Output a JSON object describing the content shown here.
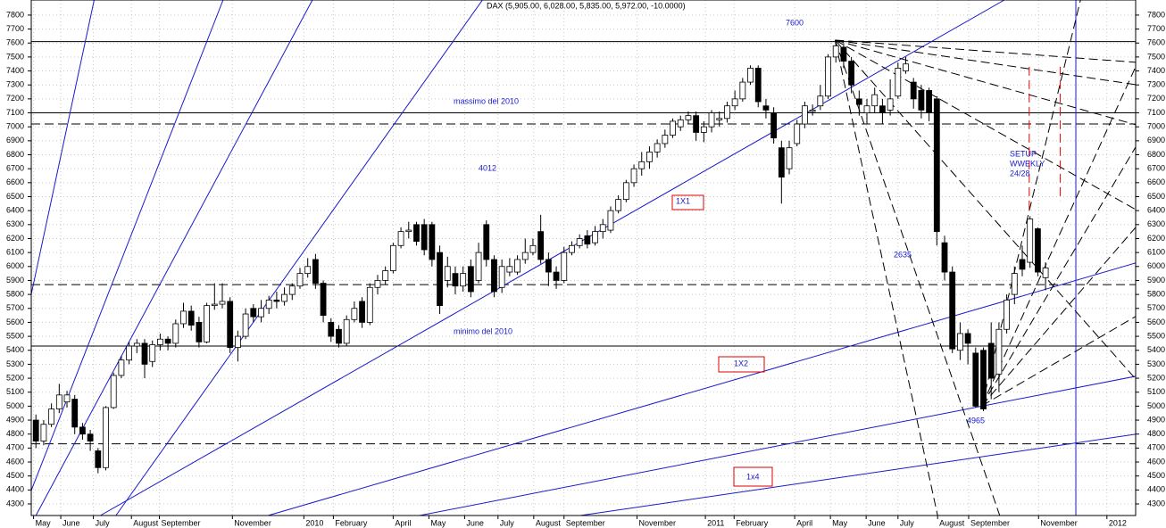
{
  "chart_data": {
    "type": "candlestick",
    "title": "DAX (5,905.00, 6,028.00, 5,835.00, 5,972.00, -10.0000)",
    "x": [
      0,
      1,
      2,
      3,
      4,
      5,
      6,
      7,
      8,
      9,
      10,
      11,
      12,
      13,
      14,
      15,
      16,
      17,
      18,
      19,
      20,
      21,
      22,
      23,
      24,
      25,
      26,
      27,
      28,
      29,
      30,
      31,
      32,
      33,
      34,
      35,
      36,
      37,
      38,
      39,
      40,
      41,
      42,
      43,
      44,
      45,
      46,
      47,
      48,
      49,
      50,
      51,
      52,
      53,
      54,
      55,
      56,
      57,
      58,
      59,
      60,
      61,
      62,
      63,
      64,
      65,
      66,
      67,
      68,
      69,
      70,
      71,
      72,
      73,
      74,
      75,
      76,
      77,
      78,
      79,
      80,
      81,
      82,
      83,
      84,
      85,
      86,
      87,
      88,
      89,
      90,
      91,
      92,
      93,
      94,
      95,
      96,
      97,
      98,
      99,
      100,
      101,
      102,
      103,
      104,
      105,
      106,
      107,
      108,
      109,
      110,
      111,
      112,
      113,
      114,
      115,
      116,
      117,
      118,
      119,
      120,
      121,
      122,
      123,
      124,
      125,
      126,
      127,
      128,
      129,
      130
    ],
    "open": [
      4900,
      4750,
      4870,
      4980,
      5030,
      5050,
      4850,
      4800,
      4680,
      4560,
      4990,
      5220,
      5330,
      5430,
      5450,
      5320,
      5440,
      5480,
      5450,
      5590,
      5680,
      5600,
      5460,
      5720,
      5730,
      5750,
      5420,
      5500,
      5700,
      5640,
      5700,
      5760,
      5750,
      5800,
      5860,
      5950,
      6050,
      5880,
      5600,
      5550,
      5450,
      5620,
      5750,
      5600,
      5850,
      5900,
      5970,
      6150,
      6250,
      6300,
      6300,
      6300,
      6100,
      5900,
      5950,
      5860,
      6000,
      5900,
      6300,
      6050,
      5850,
      5960,
      5960,
      6050,
      6100,
      6250,
      6050,
      5960,
      5900,
      6100,
      6150,
      6220,
      6170,
      6250,
      6260,
      6400,
      6480,
      6600,
      6700,
      6750,
      6820,
      6880,
      6940,
      7000,
      7050,
      7080,
      6960,
      7000,
      7050,
      7060,
      7150,
      7200,
      7320,
      7420,
      7150,
      7100,
      6850,
      6700,
      6880,
      7020,
      7110,
      7150,
      7220,
      7500,
      7570,
      7470,
      7200,
      7100,
      7150,
      7150,
      7120,
      7220,
      7400,
      7320,
      7260,
      7260,
      7200,
      6170,
      5960,
      5400,
      5520,
      5380,
      5400,
      5450,
      5230,
      5550,
      5800,
      6050,
      6030,
      6270,
      5920
    ],
    "high": [
      4940,
      4900,
      5020,
      5160,
      5110,
      5080,
      4880,
      4830,
      4700,
      5000,
      5240,
      5360,
      5460,
      5480,
      5480,
      5470,
      5520,
      5500,
      5620,
      5740,
      5720,
      5640,
      5740,
      5880,
      5880,
      5780,
      5540,
      5700,
      5730,
      5760,
      5790,
      5820,
      5850,
      5880,
      5990,
      6060,
      6090,
      5900,
      5630,
      5580,
      5650,
      5750,
      5780,
      5880,
      5940,
      6000,
      6170,
      6280,
      6320,
      6320,
      6340,
      6320,
      6150,
      6070,
      6000,
      6000,
      6050,
      6170,
      6330,
      6080,
      6050,
      6060,
      6080,
      6200,
      6200,
      6370,
      6100,
      6000,
      6140,
      6180,
      6230,
      6260,
      6290,
      6340,
      6430,
      6510,
      6620,
      6730,
      6820,
      6860,
      6910,
      6980,
      7060,
      7080,
      7110,
      7110,
      7040,
      7120,
      7110,
      7180,
      7260,
      7350,
      7440,
      7440,
      7200,
      7140,
      6900,
      6900,
      7050,
      7180,
      7160,
      7300,
      7520,
      7600,
      7600,
      7500,
      7260,
      7200,
      7280,
      7200,
      7340,
      7460,
      7500,
      7350,
      7300,
      7280,
      7220,
      6220,
      6000,
      5600,
      5550,
      5420,
      5420,
      5600,
      5600,
      5800,
      6000,
      6150,
      6360,
      6280,
      6030
    ],
    "low": [
      4700,
      4720,
      4850,
      4950,
      4990,
      4800,
      4760,
      4680,
      4520,
      4540,
      4980,
      5200,
      5300,
      5380,
      5200,
      5280,
      5400,
      5400,
      5420,
      5560,
      5540,
      5420,
      5450,
      5690,
      5700,
      5380,
      5320,
      5480,
      5600,
      5600,
      5660,
      5700,
      5720,
      5760,
      5840,
      5920,
      5840,
      5600,
      5460,
      5420,
      5430,
      5600,
      5560,
      5580,
      5800,
      5870,
      5950,
      6130,
      6200,
      6150,
      6080,
      6000,
      5660,
      5850,
      5800,
      5820,
      5780,
      5880,
      6000,
      5780,
      5810,
      5930,
      5940,
      6020,
      6080,
      6020,
      5860,
      5840,
      5880,
      6080,
      6130,
      6130,
      6150,
      6200,
      6240,
      6380,
      6460,
      6570,
      6650,
      6700,
      6780,
      6850,
      6920,
      6970,
      7020,
      6900,
      6890,
      6960,
      7000,
      7030,
      7120,
      7180,
      7300,
      7140,
      7060,
      6880,
      6450,
      6660,
      6860,
      6990,
      7080,
      7120,
      7200,
      7460,
      7420,
      7240,
      7080,
      7020,
      7100,
      7020,
      7080,
      7200,
      7380,
      7130,
      7060,
      7040,
      6150,
      5900,
      5380,
      5330,
      5300,
      4990,
      4965,
      5050,
      5100,
      5520,
      5730,
      5930,
      5990,
      5930,
      5830
    ],
    "close": [
      4750,
      4870,
      4980,
      5080,
      5080,
      4850,
      4800,
      4750,
      4560,
      4990,
      5220,
      5330,
      5430,
      5450,
      5300,
      5440,
      5480,
      5450,
      5590,
      5680,
      5580,
      5460,
      5720,
      5730,
      5750,
      5420,
      5500,
      5660,
      5640,
      5700,
      5760,
      5750,
      5800,
      5860,
      5950,
      6000,
      5880,
      5650,
      5500,
      5450,
      5620,
      5700,
      5600,
      5850,
      5900,
      5970,
      6150,
      6250,
      6260,
      6180,
      6120,
      6050,
      5720,
      6000,
      5860,
      5950,
      5820,
      6100,
      6050,
      5820,
      6000,
      6000,
      6050,
      6100,
      6150,
      6050,
      5960,
      5900,
      6100,
      6150,
      6200,
      6160,
      6250,
      6300,
      6400,
      6480,
      6600,
      6700,
      6750,
      6820,
      6880,
      6940,
      7040,
      7050,
      7080,
      6960,
      7000,
      7100,
      7060,
      7150,
      7200,
      7320,
      7420,
      7180,
      7120,
      6920,
      6640,
      6850,
      7020,
      7150,
      7120,
      7220,
      7500,
      7580,
      7470,
      7300,
      7160,
      7150,
      7230,
      7100,
      7200,
      7420,
      7450,
      7200,
      7120,
      7100,
      6250,
      5960,
      5410,
      5520,
      5450,
      5000,
      4980,
      5200,
      5550,
      5760,
      5950,
      5980,
      6340,
      5960,
      5990
    ],
    "xlim": [
      -0.6,
      141.6
    ],
    "ylim": [
      4217,
      7908
    ],
    "yticks": [
      4300,
      4400,
      4500,
      4600,
      4700,
      4800,
      4900,
      5000,
      5100,
      5200,
      5300,
      5400,
      5500,
      5600,
      5700,
      5800,
      5900,
      6000,
      6100,
      6200,
      6300,
      6400,
      6500,
      6600,
      6700,
      6800,
      6900,
      7000,
      7100,
      7200,
      7300,
      7400,
      7500,
      7600,
      7700,
      7800
    ],
    "xticks": [
      {
        "value": -0.3,
        "label": "May"
      },
      {
        "value": 3.2,
        "label": "June"
      },
      {
        "value": 7.4,
        "label": "July"
      },
      {
        "value": 12.3,
        "label": "August"
      },
      {
        "value": 15.9,
        "label": "September"
      },
      {
        "value": 25.3,
        "label": "November"
      },
      {
        "value": 34.5,
        "label": "2010"
      },
      {
        "value": 38.3,
        "label": "February"
      },
      {
        "value": 46,
        "label": "April"
      },
      {
        "value": 50.6,
        "label": "May"
      },
      {
        "value": 55.2,
        "label": "June"
      },
      {
        "value": 59.5,
        "label": "July"
      },
      {
        "value": 64.1,
        "label": "August"
      },
      {
        "value": 68,
        "label": "September"
      },
      {
        "value": 77.4,
        "label": "November"
      },
      {
        "value": 86.2,
        "label": "2011"
      },
      {
        "value": 89.9,
        "label": "February"
      },
      {
        "value": 97.7,
        "label": "April"
      },
      {
        "value": 102.3,
        "label": "May"
      },
      {
        "value": 106.9,
        "label": "June"
      },
      {
        "value": 111,
        "label": "July"
      },
      {
        "value": 116.1,
        "label": "August"
      },
      {
        "value": 120.1,
        "label": "September"
      },
      {
        "value": 129.1,
        "label": "November"
      },
      {
        "value": 137.9,
        "label": "2012"
      }
    ],
    "grid": true,
    "up_color": "#ffffff",
    "down_color": "#000000",
    "levels": [
      {
        "value": 7610,
        "dashed": false
      },
      {
        "value": 7100,
        "dashed": false
      },
      {
        "value": 7020,
        "dashed": true
      },
      {
        "value": 5870,
        "dashed": true
      },
      {
        "value": 5430,
        "dashed": false
      },
      {
        "value": 4730,
        "dashed": true
      }
    ],
    "lines": [
      {
        "x": [
          -0.6,
          7.5
        ],
        "y": [
          5801,
          7908
        ],
        "color": "#1a1acc",
        "dashed": false
      },
      {
        "x": [
          -0.6,
          24.1
        ],
        "y": [
          4396,
          7908
        ],
        "color": "#1a1acc",
        "dashed": false
      },
      {
        "x": [
          0,
          35.6
        ],
        "y": [
          4217,
          7908
        ],
        "color": "#1a1acc",
        "dashed": false
      },
      {
        "x": [
          10.3,
          57.5
        ],
        "y": [
          4217,
          7908
        ],
        "color": "#1a1acc",
        "dashed": false
      },
      {
        "x": [
          8.3,
          124.7
        ],
        "y": [
          4217,
          7908
        ],
        "color": "#1a1acc",
        "dashed": false
      },
      {
        "x": [
          29.9,
          141.6
        ],
        "y": [
          4217,
          6025
        ],
        "color": "#1a1acc",
        "dashed": false
      },
      {
        "x": [
          49.4,
          141.6
        ],
        "y": [
          4217,
          5214
        ],
        "color": "#1a1acc",
        "dashed": false
      },
      {
        "x": [
          70.1,
          141.6
        ],
        "y": [
          4217,
          4799
        ],
        "color": "#1a1acc",
        "dashed": false
      },
      {
        "x": [
          133.9,
          133.9
        ],
        "y": [
          4217,
          7908
        ],
        "color": "#1a1acc",
        "dashed": false
      },
      {
        "x": [
          102.9,
          141.6
        ],
        "y": [
          7621,
          7462
        ],
        "color": "#000000",
        "dashed": true
      },
      {
        "x": [
          102.9,
          141.6
        ],
        "y": [
          7621,
          7302
        ],
        "color": "#000000",
        "dashed": true
      },
      {
        "x": [
          102.9,
          141.6
        ],
        "y": [
          7621,
          7015
        ],
        "color": "#000000",
        "dashed": true
      },
      {
        "x": [
          102.9,
          141.6
        ],
        "y": [
          7621,
          6408
        ],
        "color": "#000000",
        "dashed": true
      },
      {
        "x": [
          102.9,
          141.6
        ],
        "y": [
          7621,
          5195
        ],
        "color": "#000000",
        "dashed": true
      },
      {
        "x": [
          102.9,
          116.1
        ],
        "y": [
          7621,
          4217
        ],
        "color": "#000000",
        "dashed": true
      },
      {
        "x": [
          102.9,
          124.1
        ],
        "y": [
          7621,
          4217
        ],
        "color": "#000000",
        "dashed": true
      },
      {
        "x": [
          121.8,
          134.5
        ],
        "y": [
          5003,
          7908
        ],
        "color": "#000000",
        "dashed": true
      },
      {
        "x": [
          121.8,
          141.6
        ],
        "y": [
          5003,
          7430
        ],
        "color": "#000000",
        "dashed": true
      },
      {
        "x": [
          121.8,
          141.6
        ],
        "y": [
          5003,
          6855
        ],
        "color": "#000000",
        "dashed": true
      },
      {
        "x": [
          121.8,
          141.6
        ],
        "y": [
          5003,
          6280
        ],
        "color": "#000000",
        "dashed": true
      },
      {
        "x": [
          121.8,
          141.6
        ],
        "y": [
          5003,
          5642
        ],
        "color": "#000000",
        "dashed": true
      },
      {
        "x": [
          127.9,
          127.9
        ],
        "y": [
          7430,
          6376
        ],
        "color": "#dd0000",
        "dashed": true
      },
      {
        "x": [
          131.9,
          131.9
        ],
        "y": [
          7430,
          6470
        ],
        "color": "#dd0000",
        "dashed": true
      }
    ],
    "annotations": [
      {
        "text": [
          "7600"
        ],
        "boxed": false
      },
      {
        "text": [
          "massimo del 2010"
        ],
        "boxed": false
      },
      {
        "text": [
          "4012"
        ],
        "boxed": false
      },
      {
        "text": [
          "1X1"
        ],
        "boxed": true
      },
      {
        "text": [
          "2635"
        ],
        "boxed": false
      },
      {
        "text": [
          "minimo del 2010"
        ],
        "boxed": false
      },
      {
        "text": [
          "1X2"
        ],
        "boxed": true
      },
      {
        "text": [
          "1x4"
        ],
        "boxed": true
      },
      {
        "text": [
          "4965"
        ],
        "boxed": false
      },
      {
        "text": [
          "SETUP",
          "WWEKLY",
          "24/28"
        ],
        "boxed": false
      }
    ]
  }
}
